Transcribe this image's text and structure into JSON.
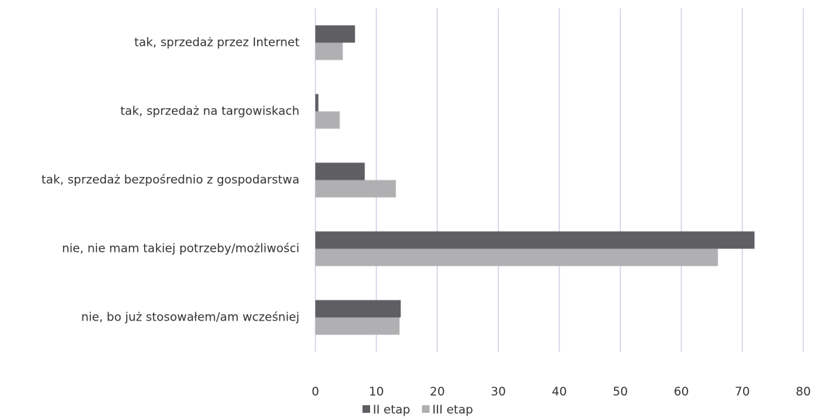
{
  "chart_data": {
    "type": "hbar",
    "categories": [
      "tak, sprzedaż przez Internet",
      "tak, sprzedaż na targowiskach",
      "tak, sprzedaż bezpośrednio z gospodarstwa",
      "nie, nie mam takiej potrzeby/możliwości",
      "nie, bo już stosowałem/am wcześniej"
    ],
    "series": [
      {
        "name": "II etap",
        "color": "#5f5e63",
        "values": [
          6.5,
          0.5,
          8.1,
          72,
          14
        ]
      },
      {
        "name": "III etap",
        "color": "#b0b0b2",
        "values": [
          4.5,
          4.0,
          13.2,
          66,
          13.8
        ]
      }
    ],
    "xlim": [
      0,
      80
    ],
    "xticks": [
      0,
      10,
      20,
      30,
      40,
      50,
      60,
      70,
      80
    ],
    "grid": true,
    "legend": "bottom"
  }
}
